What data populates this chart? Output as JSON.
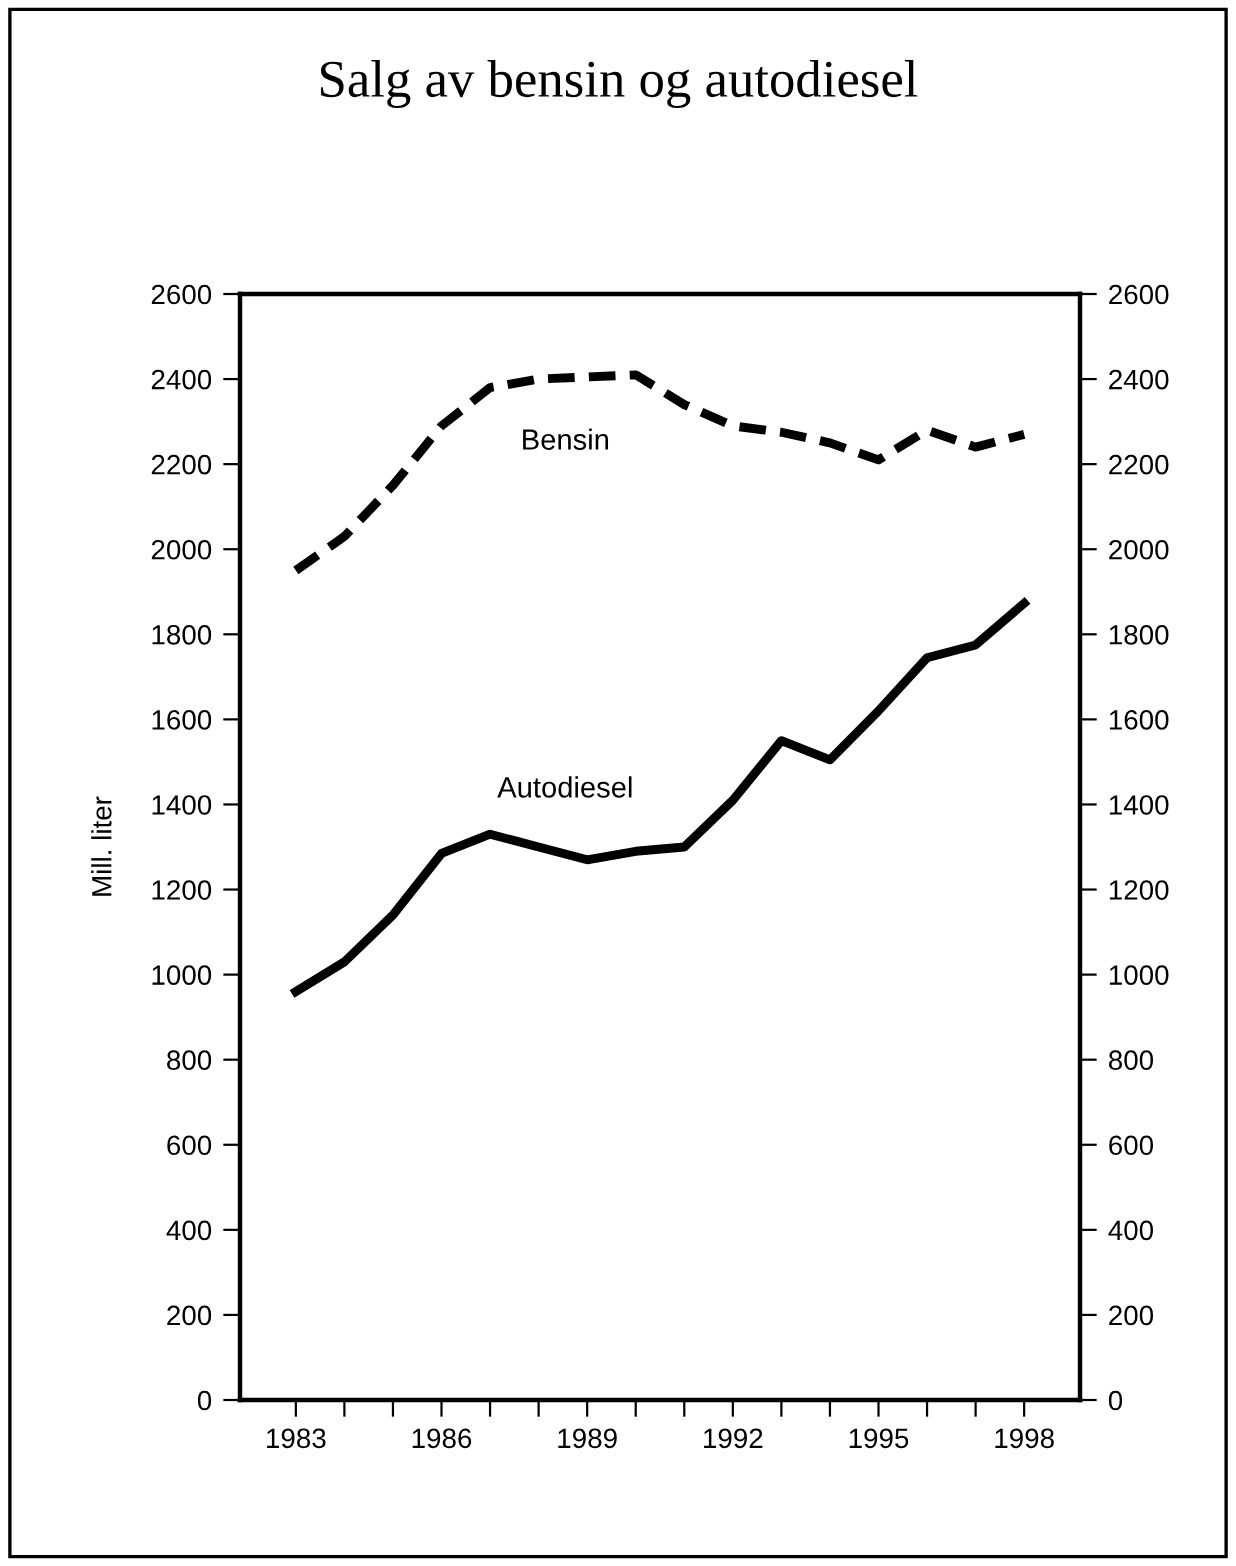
{
  "chart_data": {
    "type": "line",
    "title": "Salg av bensin og autodiesel",
    "ylabel": "Mill. liter",
    "x": [
      1983,
      1984,
      1985,
      1986,
      1987,
      1988,
      1989,
      1990,
      1991,
      1992,
      1993,
      1994,
      1995,
      1996,
      1997,
      1998
    ],
    "series": [
      {
        "name": "Bensin",
        "color": "#000000",
        "line_style": "dashed",
        "values": [
          1950,
          2030,
          2150,
          2290,
          2380,
          2400,
          2405,
          2410,
          2340,
          2290,
          2275,
          2250,
          2210,
          2280,
          2240,
          2270
        ]
      },
      {
        "name": "Autodiesel",
        "color": "#000000",
        "line_style": "solid",
        "values": [
          960,
          1030,
          1140,
          1285,
          1330,
          1300,
          1270,
          1290,
          1300,
          1410,
          1550,
          1505,
          1620,
          1745,
          1775,
          1873
        ]
      }
    ],
    "xlim": [
      1981.85,
      1999.15
    ],
    "xticks": [
      1983,
      {
        "value": 1984,
        "label": null
      },
      {
        "value": 1985,
        "label": null
      },
      1986,
      {
        "value": 1987,
        "label": null
      },
      {
        "value": 1988,
        "label": null
      },
      1989,
      {
        "value": 1990,
        "label": null
      },
      {
        "value": 1991,
        "label": null
      },
      1992,
      {
        "value": 1993,
        "label": null
      },
      {
        "value": 1994,
        "label": null
      },
      1995,
      {
        "value": 1996,
        "label": null
      },
      {
        "value": 1997,
        "label": null
      },
      1998
    ],
    "ylim": [
      0,
      2600
    ],
    "yticks": [
      0,
      200,
      400,
      600,
      800,
      1000,
      1200,
      1400,
      1600,
      1800,
      2000,
      2200,
      2400,
      2600
    ],
    "y2lim": [
      0,
      2600
    ],
    "y2ticks": [
      0,
      200,
      400,
      600,
      800,
      1000,
      1200,
      1400,
      1600,
      1800,
      2000,
      2200,
      2400,
      2600
    ],
    "grid": false,
    "legend": false,
    "marker": "none"
  }
}
